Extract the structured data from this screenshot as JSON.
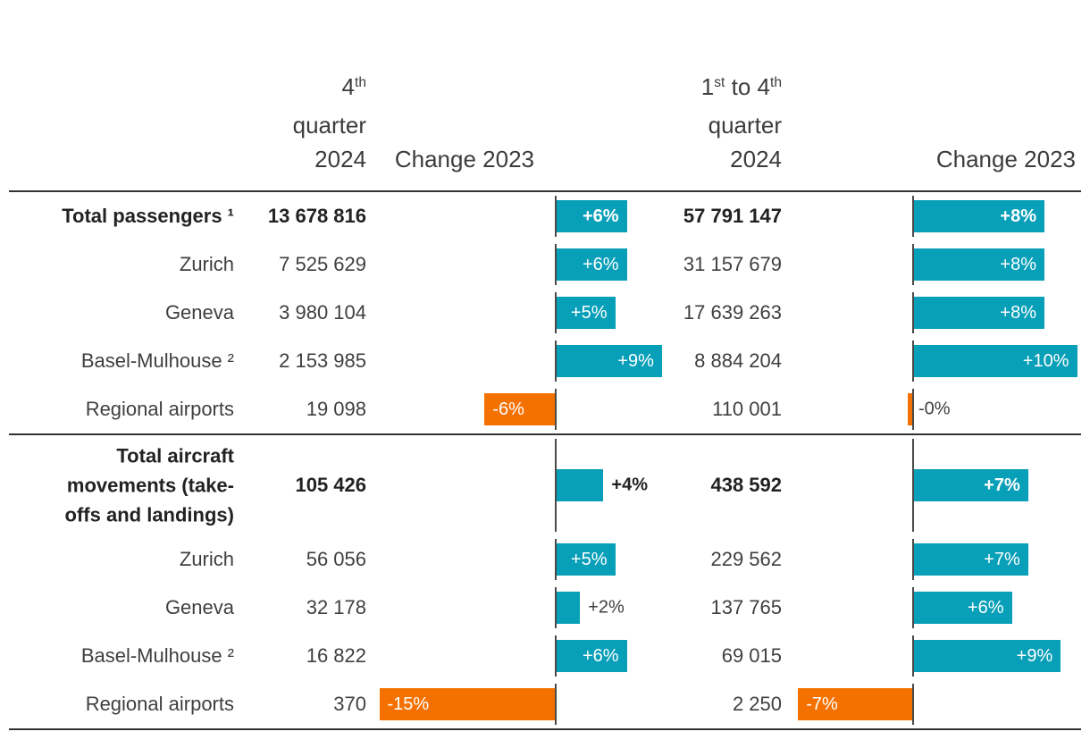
{
  "colors": {
    "positive_bar": "#089fb8",
    "negative_bar": "#f47100",
    "bar_label": "#ffffff",
    "text": "#3f3f3f",
    "text_bold": "#222222",
    "rule": "#333333",
    "axis": "#4a4a4a"
  },
  "header": {
    "col_q4": {
      "lines": [
        [
          {
            "t": "4"
          },
          {
            "t": "th",
            "sup": true
          }
        ],
        [
          {
            "t": "quarter"
          }
        ],
        [
          {
            "t": "2024"
          }
        ]
      ]
    },
    "col_change_q4": {
      "label": "Change 2023"
    },
    "col_ytd": {
      "lines": [
        [
          {
            "t": "1"
          },
          {
            "t": "st",
            "sup": true
          },
          {
            "t": " to 4"
          },
          {
            "t": "th",
            "sup": true
          }
        ],
        [
          {
            "t": "quarter"
          }
        ],
        [
          {
            "t": "2024"
          }
        ]
      ]
    },
    "col_change_ytd": {
      "label": "Change 2023"
    }
  },
  "sections": [
    {
      "name": "passengers",
      "rows": [
        {
          "label": "Total passengers ¹",
          "bold": true,
          "q4": "13 678 816",
          "change_q4": {
            "pct": 6,
            "label": "+6%"
          },
          "ytd": "57 791 147",
          "change_ytd": {
            "pct": 8,
            "label": "+8%"
          }
        },
        {
          "label": "Zurich",
          "q4": "7 525 629",
          "change_q4": {
            "pct": 6,
            "label": "+6%"
          },
          "ytd": "31 157 679",
          "change_ytd": {
            "pct": 8,
            "label": "+8%"
          }
        },
        {
          "label": "Geneva",
          "q4": "3 980 104",
          "change_q4": {
            "pct": 5,
            "label": "+5%"
          },
          "ytd": "17 639 263",
          "change_ytd": {
            "pct": 8,
            "label": "+8%"
          }
        },
        {
          "label": "Basel-Mulhouse ²",
          "q4": "2 153 985",
          "change_q4": {
            "pct": 9,
            "label": "+9%"
          },
          "ytd": "8 884 204",
          "change_ytd": {
            "pct": 10,
            "label": "+10%"
          }
        },
        {
          "label": "Regional airports",
          "q4": "19 098",
          "change_q4": {
            "pct": -6,
            "label": "-6%"
          },
          "ytd": "110 001",
          "change_ytd": {
            "pct": -0.3,
            "label": "-0%"
          }
        }
      ]
    },
    {
      "name": "aircraft_movements",
      "rows": [
        {
          "label": "Total aircraft movements (take-offs and landings)",
          "bold": true,
          "tall": true,
          "q4": "105 426",
          "change_q4": {
            "pct": 4,
            "label": "+4%"
          },
          "ytd": "438 592",
          "change_ytd": {
            "pct": 7,
            "label": "+7%"
          }
        },
        {
          "label": "Zurich",
          "q4": "56 056",
          "change_q4": {
            "pct": 5,
            "label": "+5%"
          },
          "ytd": "229 562",
          "change_ytd": {
            "pct": 7,
            "label": "+7%"
          }
        },
        {
          "label": "Geneva",
          "q4": "32 178",
          "change_q4": {
            "pct": 2,
            "label": "+2%"
          },
          "ytd": "137 765",
          "change_ytd": {
            "pct": 6,
            "label": "+6%"
          }
        },
        {
          "label": "Basel-Mulhouse ²",
          "q4": "16 822",
          "change_q4": {
            "pct": 6,
            "label": "+6%"
          },
          "ytd": "69 015",
          "change_ytd": {
            "pct": 9,
            "label": "+9%"
          }
        },
        {
          "label": "Regional airports",
          "q4": "370",
          "change_q4": {
            "pct": -15,
            "label": "-15%"
          },
          "ytd": "2 250",
          "change_ytd": {
            "pct": -7,
            "label": "-7%"
          }
        }
      ]
    }
  ],
  "chart_data": [
    {
      "type": "bar",
      "orientation": "horizontal",
      "title": "Change 2023 — 4th quarter 2024",
      "categories": [
        "Total passengers",
        "Zurich",
        "Geneva",
        "Basel-Mulhouse",
        "Regional airports",
        "Total aircraft movements (take-offs and landings)",
        "Zurich",
        "Geneva",
        "Basel-Mulhouse",
        "Regional airports"
      ],
      "values": [
        6,
        6,
        5,
        9,
        -6,
        4,
        5,
        2,
        6,
        -15
      ],
      "labels": [
        "+6%",
        "+6%",
        "+5%",
        "+9%",
        "-6%",
        "+4%",
        "+5%",
        "+2%",
        "+6%",
        "-15%"
      ],
      "unit": "%",
      "xlim": [
        -16,
        10
      ],
      "grid": false,
      "legend": "none"
    },
    {
      "type": "bar",
      "orientation": "horizontal",
      "title": "Change 2023 — 1st to 4th quarter 2024",
      "categories": [
        "Total passengers",
        "Zurich",
        "Geneva",
        "Basel-Mulhouse",
        "Regional airports",
        "Total aircraft movements (take-offs and landings)",
        "Zurich",
        "Geneva",
        "Basel-Mulhouse",
        "Regional airports"
      ],
      "values": [
        8,
        8,
        8,
        10,
        -0.3,
        7,
        7,
        6,
        9,
        -7
      ],
      "labels": [
        "+8%",
        "+8%",
        "+8%",
        "+10%",
        "-0%",
        "+7%",
        "+7%",
        "+6%",
        "+9%",
        "-7%"
      ],
      "unit": "%",
      "xlim": [
        -10,
        10
      ],
      "grid": false,
      "legend": "none"
    },
    {
      "type": "table",
      "columns": [
        "",
        "4th quarter 2024",
        "Change 2023",
        "1st to 4th quarter 2024",
        "Change 2023"
      ],
      "rows": [
        [
          "Total passengers ¹",
          "13 678 816",
          "+6%",
          "57 791 147",
          "+8%"
        ],
        [
          "Zurich",
          "7 525 629",
          "+6%",
          "31 157 679",
          "+8%"
        ],
        [
          "Geneva",
          "3 980 104",
          "+5%",
          "17 639 263",
          "+8%"
        ],
        [
          "Basel-Mulhouse ²",
          "2 153 985",
          "+9%",
          "8 884 204",
          "+10%"
        ],
        [
          "Regional airports",
          "19 098",
          "-6%",
          "110 001",
          "-0%"
        ],
        [
          "Total aircraft movements (take-offs and landings)",
          "105 426",
          "+4%",
          "438 592",
          "+7%"
        ],
        [
          "Zurich",
          "56 056",
          "+5%",
          "229 562",
          "+7%"
        ],
        [
          "Geneva",
          "32 178",
          "+2%",
          "137 765",
          "+6%"
        ],
        [
          "Basel-Mulhouse ²",
          "16 822",
          "+6%",
          "69 015",
          "+9%"
        ],
        [
          "Regional airports",
          "370",
          "-15%",
          "2 250",
          "-7%"
        ]
      ]
    }
  ]
}
